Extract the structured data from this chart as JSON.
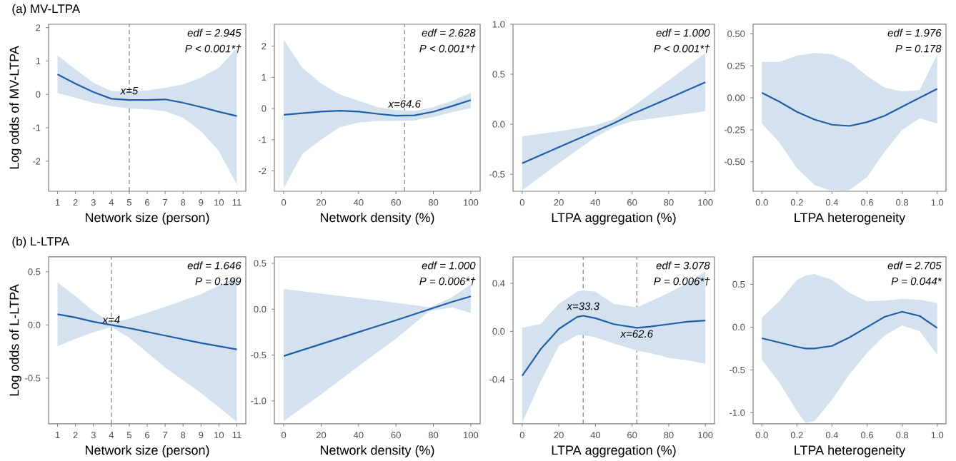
{
  "chart_data": [
    {
      "type": "line",
      "title": "(a)  MV-LTPA",
      "ylabel": "Log odds of MV-LTPA",
      "xlabel": "Network size (person)",
      "xlim": [
        0.5,
        11.5
      ],
      "ylim": [
        -2.9,
        2.1
      ],
      "xticks": [
        1,
        2,
        3,
        4,
        5,
        6,
        7,
        8,
        9,
        10,
        11
      ],
      "yticks": [
        -2,
        -1,
        0,
        1,
        2
      ],
      "x": [
        1,
        2,
        3,
        4,
        5,
        6,
        7,
        8,
        9,
        10,
        11
      ],
      "series": [
        {
          "color": "#1f5fa6",
          "values": [
            0.6,
            0.32,
            0.07,
            -0.13,
            -0.17,
            -0.17,
            -0.15,
            -0.25,
            -0.38,
            -0.52,
            -0.65
          ],
          "lower": [
            0.04,
            -0.1,
            -0.25,
            -0.35,
            -0.42,
            -0.45,
            -0.5,
            -0.7,
            -1.1,
            -1.7,
            -2.7
          ],
          "upper": [
            1.17,
            0.75,
            0.35,
            0.1,
            0.08,
            0.12,
            0.2,
            0.3,
            0.5,
            0.8,
            1.38
          ]
        }
      ],
      "ref_lines": [
        {
          "axis": "x",
          "value": 5,
          "color": "#808080",
          "line_style": "dashed"
        }
      ],
      "annotations": [
        "edf = 2.945",
        "P < 0.001*†",
        {
          "text": "x=5",
          "x": 5,
          "y": 0.11
        }
      ]
    },
    {
      "type": "line",
      "xlabel": "Network density (%)",
      "xlim": [
        -5,
        105
      ],
      "ylim": [
        -2.65,
        2.7
      ],
      "xticks": [
        0,
        20,
        40,
        60,
        80,
        100
      ],
      "yticks": [
        -2,
        -1,
        0,
        1,
        2
      ],
      "x": [
        0,
        10,
        20,
        30,
        40,
        50,
        60,
        70,
        80,
        90,
        100
      ],
      "series": [
        {
          "color": "#1f5fa6",
          "values": [
            -0.2,
            -0.15,
            -0.1,
            -0.07,
            -0.1,
            -0.17,
            -0.23,
            -0.22,
            -0.1,
            0.08,
            0.27
          ],
          "lower": [
            -2.55,
            -1.45,
            -1.0,
            -0.6,
            -0.45,
            -0.4,
            -0.4,
            -0.38,
            -0.27,
            -0.12,
            0.02
          ],
          "upper": [
            2.2,
            1.3,
            0.8,
            0.45,
            0.25,
            0.05,
            -0.05,
            -0.08,
            0.05,
            0.25,
            0.5
          ]
        }
      ],
      "ref_lines": [
        {
          "axis": "x",
          "value": 64.6,
          "color": "#808080",
          "line_style": "dashed"
        }
      ],
      "annotations": [
        "edf = 2.628",
        "P < 0.001*†",
        {
          "text": "x=64.6",
          "x": 64.6,
          "y": 0.15
        }
      ]
    },
    {
      "type": "line",
      "xlabel": "LTPA aggregation (%)",
      "xlim": [
        -5,
        105
      ],
      "ylim": [
        -0.67,
        1.0
      ],
      "xticks": [
        0,
        20,
        40,
        60,
        80,
        100
      ],
      "yticks": [
        {
          "value": -0.5,
          "label": "-0.5"
        },
        {
          "value": 0,
          "label": "0.0"
        },
        {
          "value": 0.5,
          "label": "0.5"
        },
        {
          "value": 1,
          "label": "1.0"
        }
      ],
      "x": [
        0,
        20,
        40,
        50,
        60,
        80,
        100
      ],
      "series": [
        {
          "color": "#1f5fa6",
          "values": [
            -0.39,
            -0.23,
            -0.07,
            0.01,
            0.1,
            0.26,
            0.42
          ],
          "lower": [
            -0.66,
            -0.39,
            -0.13,
            -0.03,
            0.03,
            0.08,
            0.13
          ],
          "upper": [
            -0.12,
            -0.07,
            -0.01,
            0.05,
            0.17,
            0.44,
            0.71
          ]
        }
      ],
      "annotations": [
        "edf = 1.000",
        "P < 0.001*†"
      ]
    },
    {
      "type": "line",
      "xlabel": "LTPA heterogeneity",
      "xlim": [
        -0.05,
        1.05
      ],
      "ylim": [
        -0.73,
        0.575
      ],
      "xticks": [
        {
          "value": 0,
          "label": "0.0"
        },
        {
          "value": 0.2,
          "label": "0.2"
        },
        {
          "value": 0.4,
          "label": "0.4"
        },
        {
          "value": 0.6,
          "label": "0.6"
        },
        {
          "value": 0.8,
          "label": "0.8"
        },
        {
          "value": 1,
          "label": "1.0"
        }
      ],
      "yticks": [
        {
          "value": -0.5,
          "label": "-0.50"
        },
        {
          "value": -0.25,
          "label": "-0.25"
        },
        {
          "value": 0,
          "label": "0.00"
        },
        {
          "value": 0.25,
          "label": "0.25"
        },
        {
          "value": 0.5,
          "label": "0.50"
        }
      ],
      "x": [
        0,
        0.1,
        0.2,
        0.3,
        0.4,
        0.5,
        0.6,
        0.7,
        0.8,
        0.9,
        1.0
      ],
      "series": [
        {
          "color": "#1f5fa6",
          "values": [
            0.04,
            -0.03,
            -0.11,
            -0.17,
            -0.21,
            -0.22,
            -0.19,
            -0.14,
            -0.07,
            0.0,
            0.07
          ],
          "lower": [
            -0.2,
            -0.35,
            -0.55,
            -0.68,
            -0.73,
            -0.72,
            -0.62,
            -0.42,
            -0.25,
            -0.16,
            -0.2
          ],
          "upper": [
            0.28,
            0.28,
            0.33,
            0.35,
            0.34,
            0.28,
            0.17,
            0.08,
            0.05,
            0.06,
            0.34
          ]
        }
      ],
      "annotations": [
        "edf = 1.976",
        "P = 0.178"
      ]
    },
    {
      "type": "line",
      "title": "(b)  L-LTPA",
      "ylabel": "Log odds of L-LTPA",
      "xlabel": "Network size (person)",
      "xlim": [
        0.5,
        11.5
      ],
      "ylim": [
        -0.93,
        0.64
      ],
      "xticks": [
        1,
        2,
        3,
        4,
        5,
        6,
        7,
        8,
        9,
        10,
        11
      ],
      "yticks": [
        {
          "value": -0.5,
          "label": "-0.5"
        },
        {
          "value": 0,
          "label": "0.0"
        },
        {
          "value": 0.5,
          "label": "0.5"
        }
      ],
      "x": [
        1,
        2,
        3,
        4,
        5,
        7,
        9,
        11
      ],
      "series": [
        {
          "color": "#1f5fa6",
          "values": [
            0.1,
            0.07,
            0.03,
            0.0,
            -0.03,
            -0.1,
            -0.17,
            -0.23
          ],
          "lower": [
            -0.2,
            -0.13,
            -0.07,
            -0.02,
            -0.12,
            -0.4,
            -0.64,
            -0.91
          ],
          "upper": [
            0.4,
            0.27,
            0.13,
            0.02,
            0.06,
            0.17,
            0.29,
            0.45
          ]
        }
      ],
      "ref_lines": [
        {
          "axis": "x",
          "value": 4,
          "color": "#808080",
          "line_style": "dashed"
        }
      ],
      "annotations": [
        "edf = 1.646",
        "P = 0.199",
        {
          "text": "x=4",
          "x": 4,
          "y": 0.05
        }
      ]
    },
    {
      "type": "line",
      "xlabel": "Network density (%)",
      "xlim": [
        -5,
        105
      ],
      "ylim": [
        -1.25,
        0.57
      ],
      "xticks": [
        0,
        20,
        40,
        60,
        80,
        100
      ],
      "yticks": [
        {
          "value": -1,
          "label": "-1.0"
        },
        {
          "value": -0.5,
          "label": "-0.5"
        },
        {
          "value": 0,
          "label": "0.0"
        },
        {
          "value": 0.5,
          "label": "0.5"
        }
      ],
      "x": [
        0,
        20,
        40,
        60,
        78,
        90,
        100
      ],
      "series": [
        {
          "color": "#1f5fa6",
          "values": [
            -0.51,
            -0.38,
            -0.25,
            -0.12,
            0.0,
            0.08,
            0.14
          ],
          "lower": [
            -1.22,
            -0.93,
            -0.62,
            -0.32,
            -0.02,
            0.02,
            -0.04
          ],
          "upper": [
            0.22,
            0.17,
            0.12,
            0.07,
            0.02,
            0.13,
            0.27
          ]
        }
      ],
      "annotations": [
        "edf = 1.000",
        "P = 0.006*†"
      ]
    },
    {
      "type": "line",
      "xlabel": "LTPA aggregation (%)",
      "xlim": [
        -5,
        105
      ],
      "ylim": [
        -0.77,
        0.62
      ],
      "xticks": [
        0,
        20,
        40,
        60,
        80,
        100
      ],
      "yticks": [
        {
          "value": -0.4,
          "label": "-0.4"
        },
        {
          "value": 0,
          "label": "0.0"
        },
        {
          "value": 0.4,
          "label": "0.4"
        }
      ],
      "x": [
        0,
        10,
        20,
        30,
        33.3,
        40,
        50,
        62.6,
        70,
        80,
        90,
        100
      ],
      "series": [
        {
          "color": "#1f5fa6",
          "values": [
            -0.37,
            -0.15,
            0.02,
            0.12,
            0.13,
            0.11,
            0.06,
            0.03,
            0.04,
            0.06,
            0.08,
            0.09
          ],
          "lower": [
            -0.76,
            -0.42,
            -0.12,
            -0.03,
            -0.03,
            -0.05,
            -0.1,
            -0.16,
            -0.18,
            -0.22,
            -0.24,
            -0.27
          ],
          "upper": [
            0.03,
            0.06,
            0.23,
            0.33,
            0.34,
            0.33,
            0.23,
            0.2,
            0.25,
            0.32,
            0.4,
            0.5
          ]
        }
      ],
      "ref_lines": [
        {
          "axis": "x",
          "value": 33.3,
          "color": "#808080",
          "line_style": "dashed"
        },
        {
          "axis": "x",
          "value": 62.6,
          "color": "#808080",
          "line_style": "dashed"
        }
      ],
      "annotations": [
        "edf = 3.078",
        "P = 0.006*†",
        {
          "text": "x=33.3",
          "x": 33.3,
          "y": 0.21
        },
        {
          "text": "x=62.6",
          "x": 62.6,
          "y": -0.02
        }
      ]
    },
    {
      "type": "line",
      "xlabel": "LTPA heterogeneity",
      "xlim": [
        -0.05,
        1.05
      ],
      "ylim": [
        -1.13,
        0.82
      ],
      "xticks": [
        {
          "value": 0,
          "label": "0.0"
        },
        {
          "value": 0.2,
          "label": "0.2"
        },
        {
          "value": 0.4,
          "label": "0.4"
        },
        {
          "value": 0.6,
          "label": "0.6"
        },
        {
          "value": 0.8,
          "label": "0.8"
        },
        {
          "value": 1,
          "label": "1.0"
        }
      ],
      "yticks": [
        {
          "value": -1,
          "label": "-1.0"
        },
        {
          "value": -0.5,
          "label": "-0.5"
        },
        {
          "value": 0,
          "label": "0.0"
        },
        {
          "value": 0.5,
          "label": "0.5"
        }
      ],
      "x": [
        0,
        0.1,
        0.2,
        0.25,
        0.3,
        0.4,
        0.5,
        0.6,
        0.7,
        0.8,
        0.9,
        1.0
      ],
      "series": [
        {
          "color": "#1f5fa6",
          "values": [
            -0.13,
            -0.18,
            -0.23,
            -0.25,
            -0.25,
            -0.22,
            -0.12,
            0.0,
            0.12,
            0.18,
            0.13,
            -0.01
          ],
          "lower": [
            -0.38,
            -0.65,
            -0.98,
            -1.12,
            -1.1,
            -0.85,
            -0.55,
            -0.3,
            -0.1,
            0.02,
            -0.05,
            -0.32
          ],
          "upper": [
            0.11,
            0.3,
            0.55,
            0.6,
            0.62,
            0.55,
            0.4,
            0.3,
            0.31,
            0.33,
            0.32,
            0.28
          ]
        }
      ],
      "annotations": [
        "edf = 2.705",
        "P = 0.044*"
      ]
    }
  ]
}
